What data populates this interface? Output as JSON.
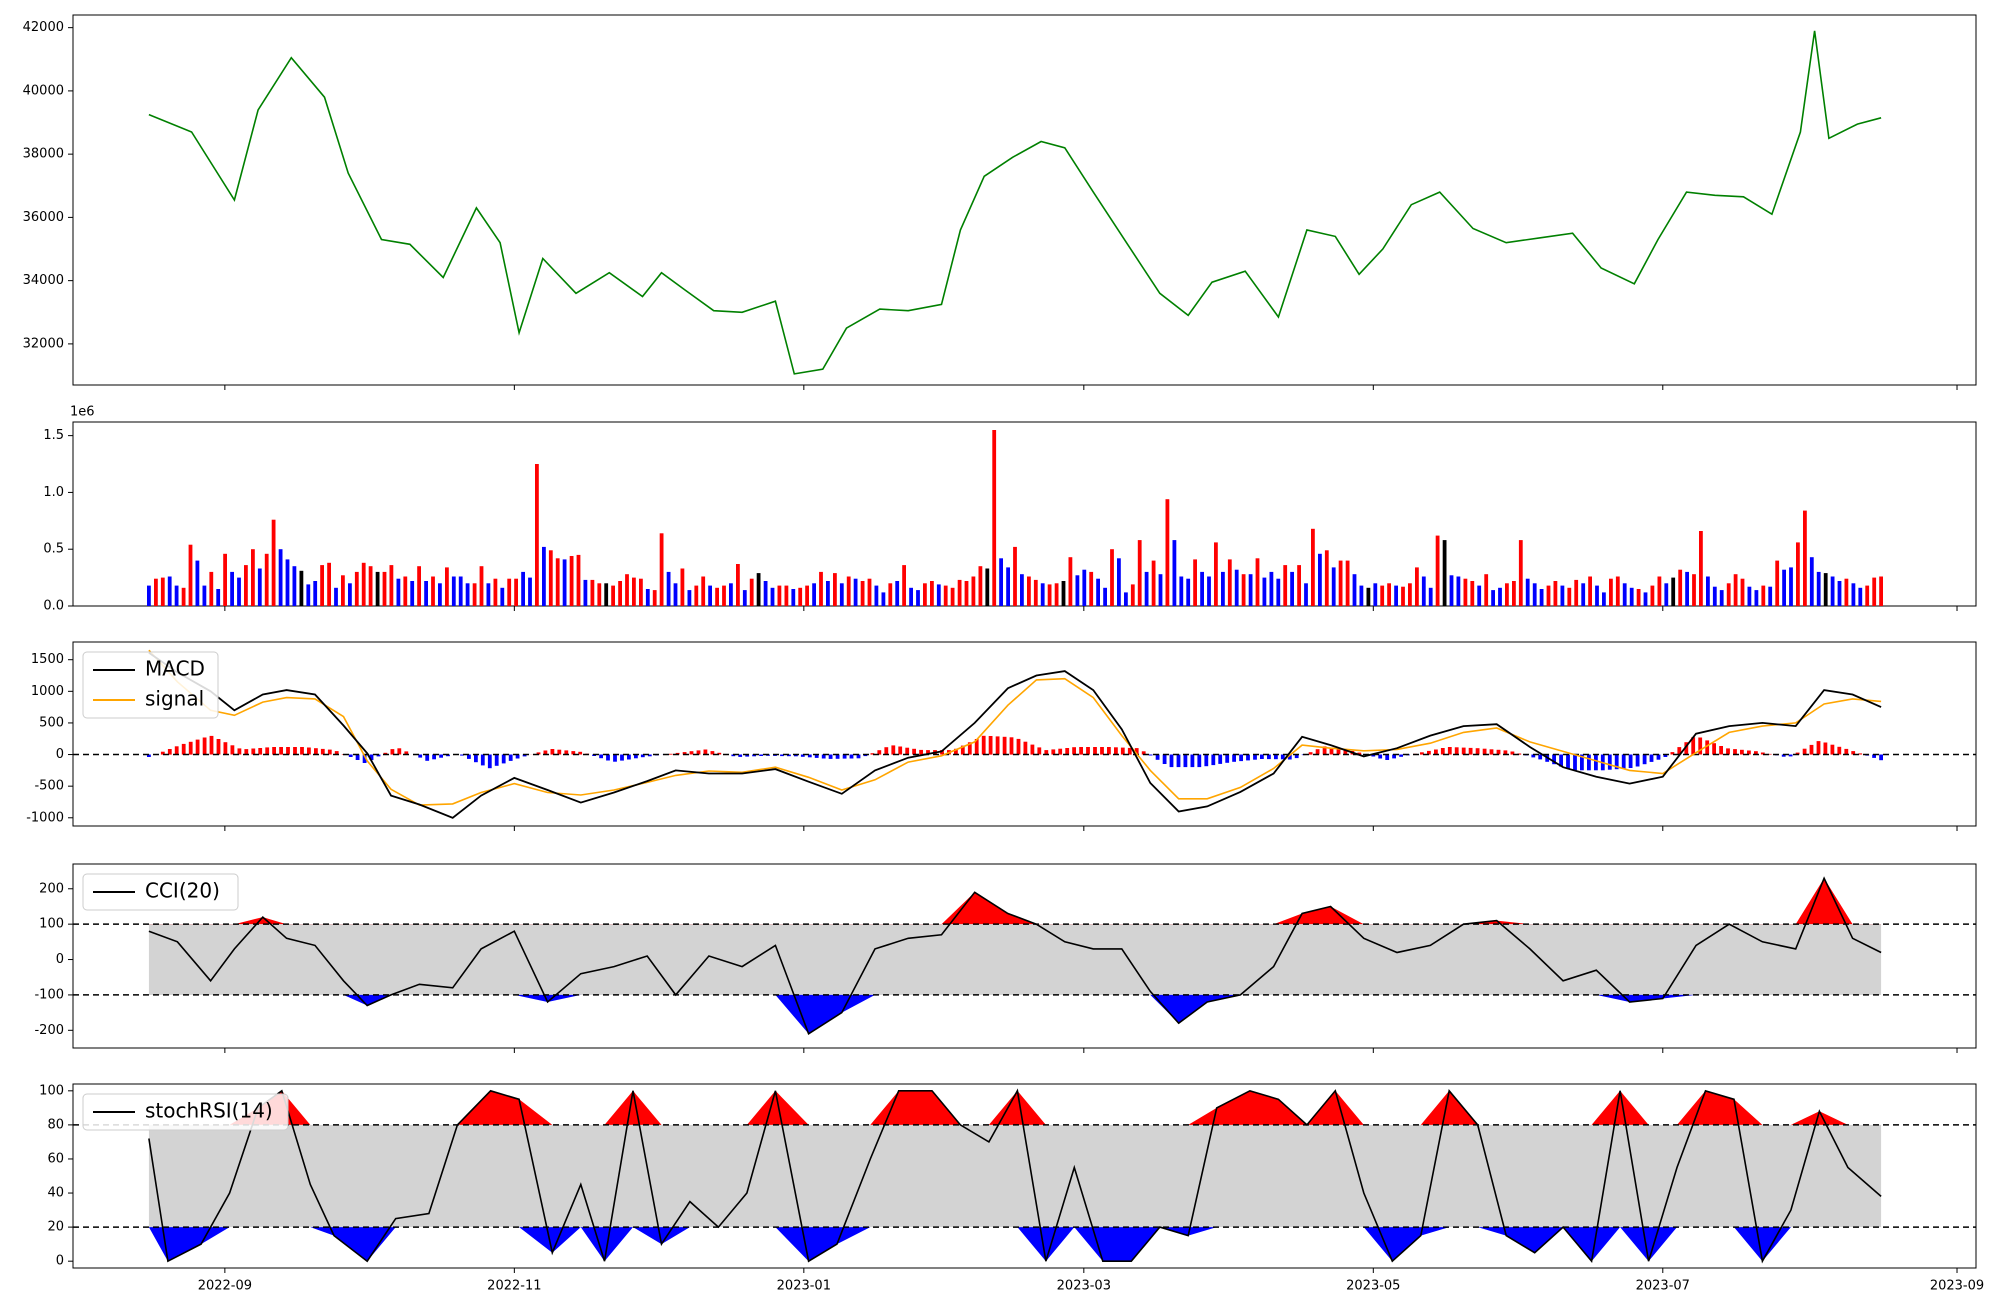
{
  "colors": {
    "price_line": "#008000",
    "up": "#ff0000",
    "down": "#0000ff",
    "neutral": "#000000",
    "signal": "#ffa500",
    "band_fill": "#d3d3d3"
  },
  "chart_data": [
    {
      "id": "price",
      "type": "line",
      "xlim": [
        "2022-07-31",
        "2023-09-05"
      ],
      "ylim": [
        30700,
        42400
      ],
      "yticks": [
        32000,
        34000,
        36000,
        38000,
        40000,
        42000
      ],
      "x": [
        "2022-08-16",
        "2022-08-25",
        "2022-09-03",
        "2022-09-08",
        "2022-09-15",
        "2022-09-22",
        "2022-09-27",
        "2022-10-04",
        "2022-10-10",
        "2022-10-17",
        "2022-10-24",
        "2022-10-29",
        "2022-11-02",
        "2022-11-07",
        "2022-11-14",
        "2022-11-21",
        "2022-11-28",
        "2022-12-02",
        "2022-12-07",
        "2022-12-13",
        "2022-12-19",
        "2022-12-26",
        "2022-12-30",
        "2023-01-05",
        "2023-01-10",
        "2023-01-17",
        "2023-01-23",
        "2023-01-30",
        "2023-02-03",
        "2023-02-08",
        "2023-02-14",
        "2023-02-20",
        "2023-02-25",
        "2023-03-03",
        "2023-03-10",
        "2023-03-17",
        "2023-03-23",
        "2023-03-28",
        "2023-04-04",
        "2023-04-11",
        "2023-04-17",
        "2023-04-23",
        "2023-04-28",
        "2023-05-03",
        "2023-05-09",
        "2023-05-15",
        "2023-05-22",
        "2023-05-29",
        "2023-06-05",
        "2023-06-12",
        "2023-06-18",
        "2023-06-25",
        "2023-06-30",
        "2023-07-06",
        "2023-07-12",
        "2023-07-18",
        "2023-07-24",
        "2023-07-30",
        "2023-08-02",
        "2023-08-05",
        "2023-08-11",
        "2023-08-16"
      ],
      "y": [
        39250,
        38700,
        36550,
        39400,
        41050,
        39800,
        37400,
        35300,
        35150,
        34100,
        36300,
        35200,
        32350,
        34700,
        33600,
        34250,
        33500,
        34250,
        33700,
        33050,
        33000,
        33350,
        31050,
        31200,
        32500,
        33100,
        33050,
        33250,
        35600,
        37300,
        37900,
        38400,
        38200,
        36800,
        35200,
        33600,
        32900,
        33950,
        34300,
        32850,
        35600,
        35400,
        34200,
        35000,
        36400,
        36800,
        35650,
        35200,
        35350,
        35500,
        34400,
        33900,
        35300,
        36800,
        36700,
        36650,
        36100,
        38700,
        41900,
        38500,
        38950,
        39150
      ]
    },
    {
      "id": "volume",
      "type": "bar",
      "scale_label": "1e6",
      "ylim": [
        0,
        1.62
      ],
      "yticks": [
        0.0,
        0.5,
        1.0,
        1.5
      ],
      "start": "2022-08-16",
      "end": "2023-08-16",
      "values": [
        0.18,
        0.24,
        0.25,
        0.26,
        0.18,
        0.16,
        0.54,
        0.4,
        0.18,
        0.3,
        0.15,
        0.46,
        0.3,
        0.25,
        0.36,
        0.5,
        0.33,
        0.46,
        0.76,
        0.5,
        0.41,
        0.35,
        0.31,
        0.19,
        0.22,
        0.36,
        0.38,
        0.16,
        0.27,
        0.2,
        0.3,
        0.38,
        0.35,
        0.3,
        0.3,
        0.36,
        0.24,
        0.26,
        0.22,
        0.35,
        0.22,
        0.26,
        0.2,
        0.34,
        0.26,
        0.26,
        0.2,
        0.2,
        0.35,
        0.2,
        0.24,
        0.16,
        0.24,
        0.24,
        0.3,
        0.25,
        1.25,
        0.52,
        0.49,
        0.42,
        0.41,
        0.44,
        0.45,
        0.23,
        0.23,
        0.2,
        0.2,
        0.18,
        0.22,
        0.28,
        0.25,
        0.24,
        0.15,
        0.14,
        0.64,
        0.3,
        0.2,
        0.33,
        0.14,
        0.18,
        0.26,
        0.18,
        0.16,
        0.18,
        0.2,
        0.37,
        0.14,
        0.24,
        0.29,
        0.22,
        0.16,
        0.18,
        0.18,
        0.15,
        0.16,
        0.18,
        0.2,
        0.3,
        0.22,
        0.29,
        0.2,
        0.26,
        0.24,
        0.22,
        0.24,
        0.18,
        0.12,
        0.2,
        0.22,
        0.36,
        0.16,
        0.14,
        0.2,
        0.22,
        0.19,
        0.18,
        0.16,
        0.23,
        0.22,
        0.26,
        0.35,
        0.33,
        1.55,
        0.42,
        0.34,
        0.52,
        0.28,
        0.26,
        0.23,
        0.2,
        0.19,
        0.2,
        0.22,
        0.43,
        0.27,
        0.32,
        0.3,
        0.24,
        0.16,
        0.5,
        0.42,
        0.12,
        0.19,
        0.58,
        0.3,
        0.4,
        0.28,
        0.94,
        0.58,
        0.26,
        0.24,
        0.41,
        0.3,
        0.26,
        0.56,
        0.3,
        0.41,
        0.32,
        0.28,
        0.28,
        0.42,
        0.25,
        0.3,
        0.24,
        0.36,
        0.3,
        0.36,
        0.2,
        0.68,
        0.46,
        0.49,
        0.34,
        0.4,
        0.4,
        0.28,
        0.18,
        0.16,
        0.2,
        0.18,
        0.2,
        0.18,
        0.17,
        0.2,
        0.34,
        0.26,
        0.16,
        0.62,
        0.58,
        0.27,
        0.26,
        0.24,
        0.22,
        0.18,
        0.28,
        0.14,
        0.16,
        0.2,
        0.22,
        0.58,
        0.24,
        0.2,
        0.15,
        0.18,
        0.22,
        0.18,
        0.16,
        0.23,
        0.2,
        0.26,
        0.18,
        0.12,
        0.24,
        0.26,
        0.2,
        0.16,
        0.15,
        0.12,
        0.18,
        0.26,
        0.2,
        0.25,
        0.32,
        0.3,
        0.28,
        0.66,
        0.26,
        0.17,
        0.14,
        0.2,
        0.28,
        0.24,
        0.17,
        0.14,
        0.18,
        0.17,
        0.4,
        0.32,
        0.34,
        0.56,
        0.84,
        0.43,
        0.3,
        0.29,
        0.26,
        0.22,
        0.24,
        0.2,
        0.16,
        0.18,
        0.25,
        0.26
      ],
      "colors": "bars colored up/down/neutral by daily price change"
    },
    {
      "id": "macd",
      "type": "line",
      "ylim": [
        -1130,
        1780
      ],
      "yticks": [
        -1000,
        -500,
        0,
        500,
        1000,
        1500
      ],
      "legend": [
        "MACD",
        "signal"
      ],
      "x": [
        "2022-08-16",
        "2022-08-22",
        "2022-08-29",
        "2022-09-03",
        "2022-09-09",
        "2022-09-14",
        "2022-09-20",
        "2022-09-26",
        "2022-10-01",
        "2022-10-06",
        "2022-10-12",
        "2022-10-19",
        "2022-10-25",
        "2022-11-01",
        "2022-11-08",
        "2022-11-15",
        "2022-11-22",
        "2022-11-29",
        "2022-12-05",
        "2022-12-12",
        "2022-12-19",
        "2022-12-26",
        "2023-01-02",
        "2023-01-09",
        "2023-01-16",
        "2023-01-23",
        "2023-01-30",
        "2023-02-06",
        "2023-02-13",
        "2023-02-19",
        "2023-02-25",
        "2023-03-03",
        "2023-03-09",
        "2023-03-15",
        "2023-03-21",
        "2023-03-27",
        "2023-04-03",
        "2023-04-10",
        "2023-04-16",
        "2023-04-22",
        "2023-04-29",
        "2023-05-06",
        "2023-05-13",
        "2023-05-20",
        "2023-05-27",
        "2023-06-03",
        "2023-06-10",
        "2023-06-17",
        "2023-06-24",
        "2023-07-01",
        "2023-07-08",
        "2023-07-15",
        "2023-07-22",
        "2023-07-29",
        "2023-08-04",
        "2023-08-10",
        "2023-08-16"
      ],
      "macd": [
        1610,
        1300,
        1000,
        700,
        950,
        1020,
        950,
        460,
        20,
        -650,
        -790,
        -1000,
        -650,
        -370,
        -560,
        -760,
        -600,
        -420,
        -250,
        -300,
        -300,
        -230,
        -430,
        -620,
        -250,
        -50,
        50,
        500,
        1050,
        1250,
        1320,
        1020,
        400,
        -450,
        -900,
        -820,
        -590,
        -300,
        280,
        150,
        -30,
        100,
        300,
        450,
        480,
        120,
        -200,
        -350,
        -460,
        -350,
        330,
        450,
        500,
        450,
        1020,
        950,
        750
      ],
      "signal": [
        1650,
        1150,
        700,
        620,
        830,
        900,
        880,
        600,
        -100,
        -550,
        -800,
        -780,
        -600,
        -460,
        -600,
        -640,
        -560,
        -440,
        -330,
        -260,
        -280,
        -200,
        -360,
        -560,
        -400,
        -120,
        -20,
        200,
        780,
        1180,
        1200,
        900,
        300,
        -250,
        -700,
        -700,
        -520,
        -220,
        150,
        100,
        60,
        80,
        180,
        350,
        420,
        200,
        50,
        -100,
        -250,
        -300,
        30,
        350,
        450,
        500,
        800,
        880,
        840
      ]
    },
    {
      "id": "cci",
      "type": "line",
      "ylim": [
        -250,
        270
      ],
      "yticks": [
        -200,
        -100,
        0,
        100,
        200
      ],
      "legend": [
        "CCI(20)"
      ],
      "hlines": [
        100,
        -100
      ],
      "x": [
        "2022-08-16",
        "2022-08-22",
        "2022-08-29",
        "2022-09-03",
        "2022-09-09",
        "2022-09-14",
        "2022-09-20",
        "2022-09-26",
        "2022-10-01",
        "2022-10-06",
        "2022-10-12",
        "2022-10-19",
        "2022-10-25",
        "2022-11-01",
        "2022-11-08",
        "2022-11-15",
        "2022-11-22",
        "2022-11-29",
        "2022-12-05",
        "2022-12-12",
        "2022-12-19",
        "2022-12-26",
        "2023-01-02",
        "2023-01-09",
        "2023-01-16",
        "2023-01-23",
        "2023-01-30",
        "2023-02-06",
        "2023-02-13",
        "2023-02-19",
        "2023-02-25",
        "2023-03-03",
        "2023-03-09",
        "2023-03-15",
        "2023-03-21",
        "2023-03-27",
        "2023-04-03",
        "2023-04-10",
        "2023-04-16",
        "2023-04-22",
        "2023-04-29",
        "2023-05-06",
        "2023-05-13",
        "2023-05-20",
        "2023-05-27",
        "2023-06-03",
        "2023-06-10",
        "2023-06-17",
        "2023-06-24",
        "2023-07-01",
        "2023-07-08",
        "2023-07-15",
        "2023-07-22",
        "2023-07-29",
        "2023-08-04",
        "2023-08-10",
        "2023-08-16"
      ],
      "y": [
        80,
        50,
        -60,
        30,
        120,
        60,
        40,
        -60,
        -130,
        -100,
        -70,
        -80,
        30,
        80,
        -120,
        -40,
        -20,
        10,
        -100,
        10,
        -20,
        40,
        -210,
        -150,
        30,
        60,
        70,
        190,
        130,
        100,
        50,
        30,
        30,
        -90,
        -180,
        -120,
        -100,
        -20,
        130,
        150,
        60,
        20,
        40,
        100,
        110,
        30,
        -60,
        -30,
        -120,
        -110,
        40,
        100,
        50,
        30,
        230,
        60,
        20
      ]
    },
    {
      "id": "stochrsi",
      "type": "line",
      "ylim": [
        -4,
        104
      ],
      "yticks": [
        0,
        20,
        40,
        60,
        80,
        100
      ],
      "legend": [
        "stochRSI(14)"
      ],
      "hlines": [
        80,
        20
      ],
      "x": [
        "2022-08-16",
        "2022-08-20",
        "2022-08-27",
        "2022-09-02",
        "2022-09-08",
        "2022-09-13",
        "2022-09-19",
        "2022-09-24",
        "2022-10-01",
        "2022-10-07",
        "2022-10-14",
        "2022-10-20",
        "2022-10-27",
        "2022-11-02",
        "2022-11-09",
        "2022-11-15",
        "2022-11-20",
        "2022-11-26",
        "2022-12-02",
        "2022-12-08",
        "2022-12-14",
        "2022-12-20",
        "2022-12-26",
        "2023-01-02",
        "2023-01-08",
        "2023-01-15",
        "2023-01-21",
        "2023-01-28",
        "2023-02-03",
        "2023-02-09",
        "2023-02-15",
        "2023-02-21",
        "2023-02-27",
        "2023-03-05",
        "2023-03-11",
        "2023-03-17",
        "2023-03-23",
        "2023-03-29",
        "2023-04-05",
        "2023-04-11",
        "2023-04-17",
        "2023-04-23",
        "2023-04-29",
        "2023-05-05",
        "2023-05-11",
        "2023-05-17",
        "2023-05-23",
        "2023-05-29",
        "2023-06-04",
        "2023-06-10",
        "2023-06-16",
        "2023-06-22",
        "2023-06-28",
        "2023-07-04",
        "2023-07-10",
        "2023-07-16",
        "2023-07-22",
        "2023-07-28",
        "2023-08-03",
        "2023-08-09",
        "2023-08-16"
      ],
      "y": [
        72,
        0,
        10,
        40,
        90,
        100,
        45,
        15,
        0,
        25,
        28,
        80,
        100,
        95,
        5,
        45,
        0,
        100,
        10,
        35,
        20,
        40,
        100,
        0,
        10,
        60,
        100,
        100,
        80,
        70,
        100,
        0,
        55,
        0,
        0,
        20,
        15,
        90,
        100,
        95,
        80,
        100,
        40,
        0,
        15,
        100,
        80,
        15,
        5,
        20,
        0,
        100,
        0,
        55,
        100,
        95,
        0,
        30,
        88,
        55,
        38
      ]
    }
  ],
  "xaxis": {
    "ticks": [
      "2022-09-01",
      "2022-11-01",
      "2023-01-01",
      "2023-03-01",
      "2023-05-01",
      "2023-07-01",
      "2023-09-01"
    ],
    "labels": [
      "2022-09",
      "2022-11",
      "2023-01",
      "2023-03",
      "2023-05",
      "2023-07",
      "2023-09"
    ]
  }
}
